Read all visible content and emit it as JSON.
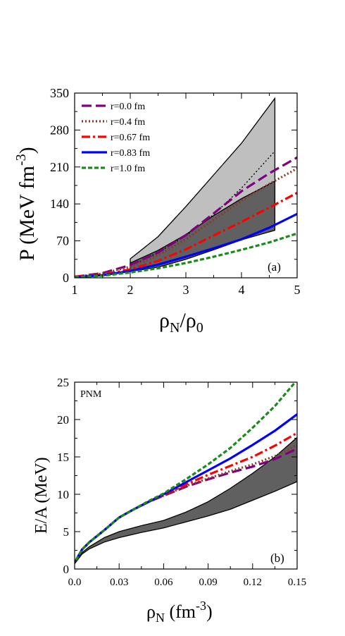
{
  "colors": {
    "purple": "#800080",
    "brown": "#8b3a2a",
    "red": "#ff0000",
    "blue": "#0000ff",
    "green": "#1a8a1a",
    "light_band": "#bfbfbf",
    "dark_band": "#606060"
  },
  "chart_data": [
    {
      "type": "line",
      "panel_label": "(a)",
      "xlabel_main": "ρ",
      "xlabel_sub1": "N",
      "xlabel_mid": "/ρ",
      "xlabel_sub2": "0",
      "ylabel_main": "P (MeV fm",
      "ylabel_sup": "-3",
      "ylabel_end": ")",
      "xlim": [
        1,
        5
      ],
      "ylim": [
        0,
        350
      ],
      "xticks": [
        "1",
        "2",
        "3",
        "4",
        "5"
      ],
      "yticks": [
        "0",
        "70",
        "140",
        "210",
        "280",
        "350"
      ],
      "legend_position": "top-left",
      "series": [
        {
          "name": "r=0.0 fm",
          "color": "purple",
          "dash": "dashed",
          "x": [
            1,
            1.5,
            2,
            2.5,
            3,
            3.5,
            4,
            4.5,
            5
          ],
          "y": [
            2,
            9,
            24,
            48,
            81,
            122,
            164,
            198,
            228
          ]
        },
        {
          "name": "r=0.4 fm",
          "color": "brown",
          "dash": "dotted",
          "x": [
            1,
            1.5,
            2,
            2.5,
            3,
            3.5,
            4,
            4.5,
            5
          ],
          "y": [
            2,
            8,
            21,
            43,
            73,
            110,
            146,
            178,
            207
          ]
        },
        {
          "name": "r=0.67 fm",
          "color": "red",
          "dash": "dashdot",
          "x": [
            1,
            1.5,
            2,
            2.5,
            3,
            3.5,
            4,
            4.5,
            5
          ],
          "y": [
            2,
            6,
            16,
            32,
            54,
            80,
            106,
            133,
            161
          ]
        },
        {
          "name": "r=0.83 fm",
          "color": "blue",
          "dash": "solid",
          "x": [
            1,
            1.5,
            2,
            2.5,
            3,
            3.5,
            4,
            4.5,
            5
          ],
          "y": [
            1,
            5,
            13,
            25,
            40,
            56,
            73,
            95,
            121
          ]
        },
        {
          "name": "r=1.0 fm",
          "color": "green",
          "dash": "shortdash",
          "x": [
            1,
            1.5,
            2,
            2.5,
            3,
            3.5,
            4,
            4.5,
            5
          ],
          "y": [
            1,
            4,
            10,
            18,
            28,
            40,
            53,
            67,
            84
          ]
        }
      ],
      "bands": [
        {
          "fill": "light_band",
          "x": [
            2,
            2.5,
            3,
            3.5,
            4,
            4.6
          ],
          "upper": [
            36,
            78,
            135,
            195,
            255,
            340
          ],
          "lower": [
            19,
            35,
            55,
            80,
            110,
            140
          ]
        },
        {
          "fill": "dark_band",
          "x": [
            2,
            2.5,
            3,
            3.5,
            4,
            4.6
          ],
          "upper": [
            28,
            52,
            82,
            118,
            150,
            183
          ],
          "lower": [
            12,
            20,
            35,
            53,
            72,
            90
          ]
        }
      ],
      "band_mid_line": {
        "x": [
          2,
          2.5,
          3,
          3.5,
          4,
          4.6
        ],
        "y": [
          22,
          48,
          80,
          120,
          170,
          240
        ]
      }
    },
    {
      "type": "line",
      "panel_label": "(b)",
      "annotation": "PNM",
      "xlabel_main": "ρ",
      "xlabel_sub1": "N",
      "xlabel_unit": " (fm",
      "xlabel_sup": "-3",
      "xlabel_end": ")",
      "ylabel": "E/A (MeV)",
      "xlim": [
        0,
        0.15
      ],
      "ylim": [
        0,
        25
      ],
      "xticks": [
        "0.0",
        "0.03",
        "0.06",
        "0.09",
        "0.12",
        "0.15"
      ],
      "yticks": [
        "0",
        "5",
        "10",
        "15",
        "20",
        "25"
      ],
      "series": [
        {
          "name": "r=0.0 fm",
          "color": "purple",
          "dash": "dashed",
          "x": [
            0.001,
            0.005,
            0.01,
            0.02,
            0.03,
            0.04,
            0.05,
            0.06,
            0.075,
            0.09,
            0.105,
            0.12,
            0.135,
            0.15
          ],
          "y": [
            1.2,
            2.6,
            3.6,
            5.2,
            6.9,
            8.0,
            9.0,
            9.8,
            11.0,
            12.0,
            12.9,
            13.7,
            14.7,
            16.1
          ]
        },
        {
          "name": "r=0.4 fm",
          "color": "brown",
          "dash": "dotted",
          "x": [
            0.001,
            0.005,
            0.01,
            0.02,
            0.03,
            0.04,
            0.05,
            0.06,
            0.075,
            0.09,
            0.105,
            0.12,
            0.135,
            0.15
          ],
          "y": [
            1.2,
            2.6,
            3.6,
            5.2,
            6.9,
            8.0,
            9.0,
            9.8,
            11.1,
            12.1,
            13.1,
            14.0,
            15.1,
            16.6
          ]
        },
        {
          "name": "r=0.67 fm",
          "color": "red",
          "dash": "dashdot",
          "x": [
            0.001,
            0.005,
            0.01,
            0.02,
            0.03,
            0.04,
            0.05,
            0.06,
            0.075,
            0.09,
            0.105,
            0.12,
            0.135,
            0.15
          ],
          "y": [
            1.2,
            2.6,
            3.6,
            5.2,
            6.9,
            8.0,
            9.0,
            9.9,
            11.3,
            12.6,
            13.8,
            15.0,
            16.5,
            18.2
          ]
        },
        {
          "name": "r=0.83 fm",
          "color": "blue",
          "dash": "solid",
          "x": [
            0.001,
            0.005,
            0.01,
            0.02,
            0.03,
            0.04,
            0.05,
            0.06,
            0.075,
            0.09,
            0.105,
            0.12,
            0.135,
            0.15
          ],
          "y": [
            1.2,
            2.6,
            3.6,
            5.2,
            6.9,
            8.0,
            9.0,
            10.0,
            11.6,
            13.2,
            14.8,
            16.6,
            18.5,
            20.7
          ]
        },
        {
          "name": "r=1.0 fm",
          "color": "green",
          "dash": "shortdash",
          "x": [
            0.001,
            0.005,
            0.01,
            0.02,
            0.03,
            0.04,
            0.05,
            0.06,
            0.075,
            0.09,
            0.105,
            0.12,
            0.135,
            0.15
          ],
          "y": [
            1.2,
            2.6,
            3.6,
            5.2,
            6.9,
            8.0,
            9.1,
            10.1,
            12.0,
            14.0,
            16.2,
            18.9,
            21.8,
            25.3
          ]
        }
      ],
      "bands": [
        {
          "fill": "dark_band",
          "x": [
            0.0,
            0.005,
            0.01,
            0.02,
            0.03,
            0.045,
            0.06,
            0.075,
            0.09,
            0.105,
            0.12,
            0.135,
            0.15
          ],
          "upper": [
            1.0,
            2.2,
            3.0,
            4.2,
            5.0,
            5.8,
            6.5,
            7.6,
            9.0,
            10.8,
            12.8,
            15.0,
            17.6
          ],
          "lower": [
            0.7,
            2.0,
            2.7,
            3.6,
            4.2,
            4.9,
            5.5,
            6.3,
            7.1,
            8.0,
            9.2,
            10.4,
            11.7
          ]
        }
      ]
    }
  ]
}
